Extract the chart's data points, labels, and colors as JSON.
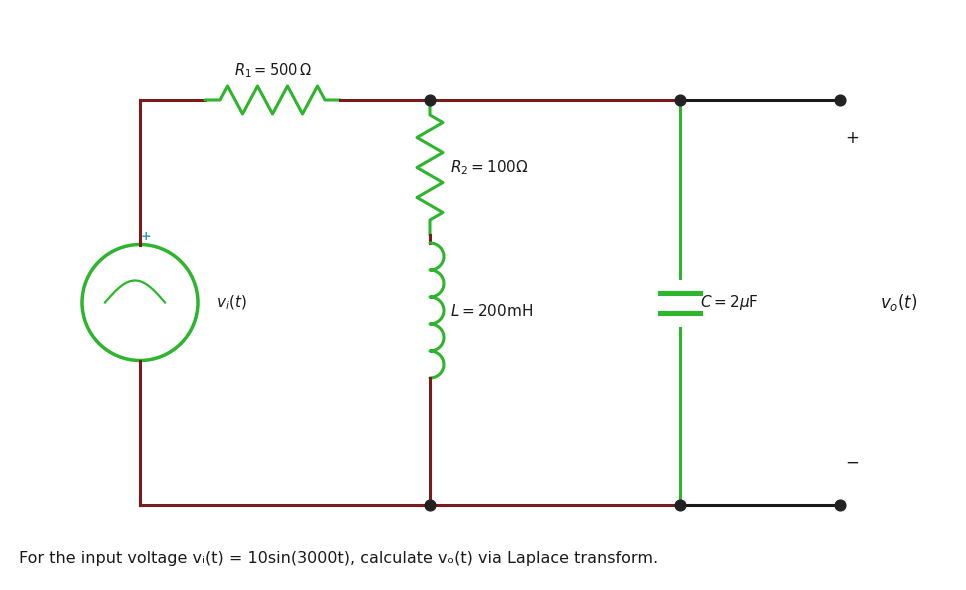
{
  "bg_color": "#ffffff",
  "wire_color_dark": "#7a1a1a",
  "wire_color_green": "#2db52d",
  "wire_color_black": "#1a1a1a",
  "dot_color": "#222222",
  "text_color": "#1a1a1a",
  "plus_color": "#3399cc",
  "figsize": [
    9.66,
    5.9
  ],
  "dpi": 100,
  "bottom_text": "For the input voltage vᵢ(t) = 10sin(3000t), calculate vₒ(t) via Laplace transform.",
  "R1_label": "$R_1 = 500\\,\\Omega$",
  "R2_label": "$R_2 = 100\\Omega$",
  "L_label": "$L = 200\\mathrm{mH}$",
  "C_label": "$C = 2\\mu\\mathrm{F}$",
  "vi_label": "$v_i(t)$",
  "vo_label": "$v_o(t)$"
}
